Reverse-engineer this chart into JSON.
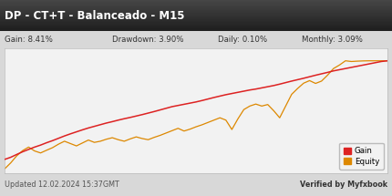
{
  "title": "DP - CT+T - Balanceado - M15",
  "title_bg_top": "#3a3a3a",
  "title_bg_bottom": "#1a1a1a",
  "title_color": "#ffffff",
  "stats_bg": "#e8e8e8",
  "gain_label": "Gain: 8.41%",
  "drawdown_label": "Drawdown: 3.90%",
  "daily_label": "Daily: 0.10%",
  "monthly_label": "Monthly: 3.09%",
  "footer_left": "Updated 12.02.2024 15:37GMT",
  "footer_right": "Verified by Myfxbook",
  "chart_bg": "#f2f2f2",
  "outer_bg": "#d8d8d8",
  "grid_color": "#cccccc",
  "gain_color": "#dd2222",
  "equity_color": "#dd8800",
  "legend_gain": "Gain",
  "legend_equity": "Equity",
  "gain_data": [
    0.0,
    0.18,
    0.42,
    0.65,
    0.85,
    1.05,
    1.22,
    1.42,
    1.6,
    1.8,
    2.0,
    2.18,
    2.35,
    2.52,
    2.68,
    2.82,
    2.96,
    3.1,
    3.22,
    3.35,
    3.47,
    3.58,
    3.7,
    3.82,
    3.95,
    4.08,
    4.22,
    4.36,
    4.5,
    4.6,
    4.7,
    4.8,
    4.9,
    5.02,
    5.15,
    5.28,
    5.4,
    5.52,
    5.62,
    5.72,
    5.82,
    5.92,
    6.0,
    6.1,
    6.2,
    6.3,
    6.42,
    6.55,
    6.68,
    6.8,
    6.92,
    7.05,
    7.18,
    7.3,
    7.42,
    7.55,
    7.65,
    7.75,
    7.85,
    7.95,
    8.05,
    8.15,
    8.25,
    8.35,
    8.41
  ],
  "equity_data": [
    -0.8,
    -0.3,
    0.3,
    0.75,
    1.05,
    0.72,
    0.55,
    0.78,
    1.0,
    1.3,
    1.55,
    1.35,
    1.15,
    1.4,
    1.65,
    1.45,
    1.55,
    1.72,
    1.85,
    1.68,
    1.55,
    1.75,
    1.92,
    1.78,
    1.68,
    1.88,
    2.05,
    2.25,
    2.45,
    2.65,
    2.42,
    2.58,
    2.78,
    2.95,
    3.15,
    3.35,
    3.55,
    3.35,
    2.55,
    3.45,
    4.25,
    4.55,
    4.72,
    4.55,
    4.68,
    4.15,
    3.55,
    4.55,
    5.55,
    6.05,
    6.5,
    6.72,
    6.48,
    6.68,
    7.18,
    7.75,
    8.05,
    8.41,
    8.35,
    8.38,
    8.4,
    8.41,
    8.41,
    8.41,
    8.41
  ],
  "ylim_min": -1.2,
  "ylim_max": 9.5
}
